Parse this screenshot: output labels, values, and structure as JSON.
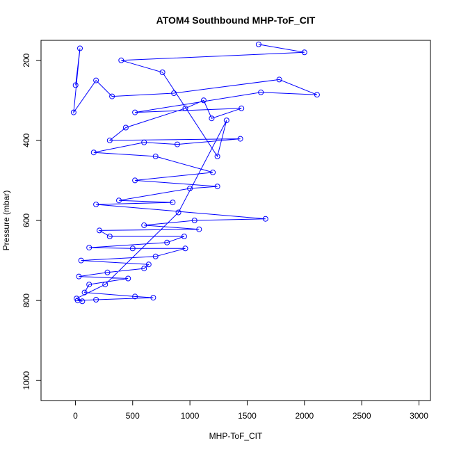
{
  "chart_data": {
    "type": "scatter",
    "title": "ATOM4 Southbound MHP-ToF_CIT",
    "xlabel": "MHP-ToF_CIT",
    "ylabel": "Pressure (mbar)",
    "xlim": [
      -300,
      3100
    ],
    "ylim": [
      1050,
      150
    ],
    "y_reversed": true,
    "xticks": [
      0,
      500,
      1000,
      1500,
      2000,
      2500,
      3000
    ],
    "yticks": [
      200,
      400,
      600,
      800,
      1000
    ],
    "series_color": "#0000ff",
    "marker": "open-circle",
    "connected": true,
    "grid": false,
    "series": [
      {
        "points": [
          [
            2,
            262
          ],
          [
            40,
            170
          ],
          [
            -15,
            330
          ],
          [
            180,
            250
          ],
          [
            320,
            290
          ],
          [
            860,
            282
          ],
          [
            1780,
            248
          ],
          [
            2110,
            286
          ],
          [
            1620,
            280
          ],
          [
            520,
            330
          ],
          [
            1450,
            320
          ],
          [
            1190,
            345
          ],
          [
            1120,
            300
          ],
          [
            960,
            320
          ],
          [
            440,
            368
          ],
          [
            300,
            400
          ],
          [
            1440,
            396
          ],
          [
            890,
            410
          ],
          [
            600,
            405
          ],
          [
            160,
            430
          ],
          [
            700,
            440
          ],
          [
            1200,
            480
          ],
          [
            520,
            500
          ],
          [
            1240,
            515
          ],
          [
            1000,
            520
          ],
          [
            380,
            550
          ],
          [
            850,
            555
          ],
          [
            180,
            560
          ],
          [
            1660,
            596
          ],
          [
            1040,
            600
          ],
          [
            600,
            612
          ],
          [
            1080,
            622
          ],
          [
            210,
            625
          ],
          [
            300,
            640
          ],
          [
            950,
            640
          ],
          [
            800,
            655
          ],
          [
            120,
            668
          ],
          [
            500,
            670
          ],
          [
            960,
            670
          ],
          [
            700,
            690
          ],
          [
            50,
            700
          ],
          [
            640,
            710
          ],
          [
            600,
            720
          ],
          [
            280,
            730
          ],
          [
            30,
            740
          ],
          [
            460,
            745
          ],
          [
            120,
            760
          ],
          [
            80,
            780
          ],
          [
            520,
            790
          ],
          [
            680,
            793
          ],
          [
            180,
            798
          ],
          [
            20,
            800
          ],
          [
            60,
            802
          ],
          [
            10,
            795
          ],
          [
            260,
            760
          ],
          [
            900,
            580
          ],
          [
            1320,
            350
          ],
          [
            1240,
            440
          ],
          [
            760,
            230
          ],
          [
            400,
            200
          ],
          [
            2000,
            180
          ],
          [
            1600,
            160
          ]
        ]
      }
    ]
  }
}
